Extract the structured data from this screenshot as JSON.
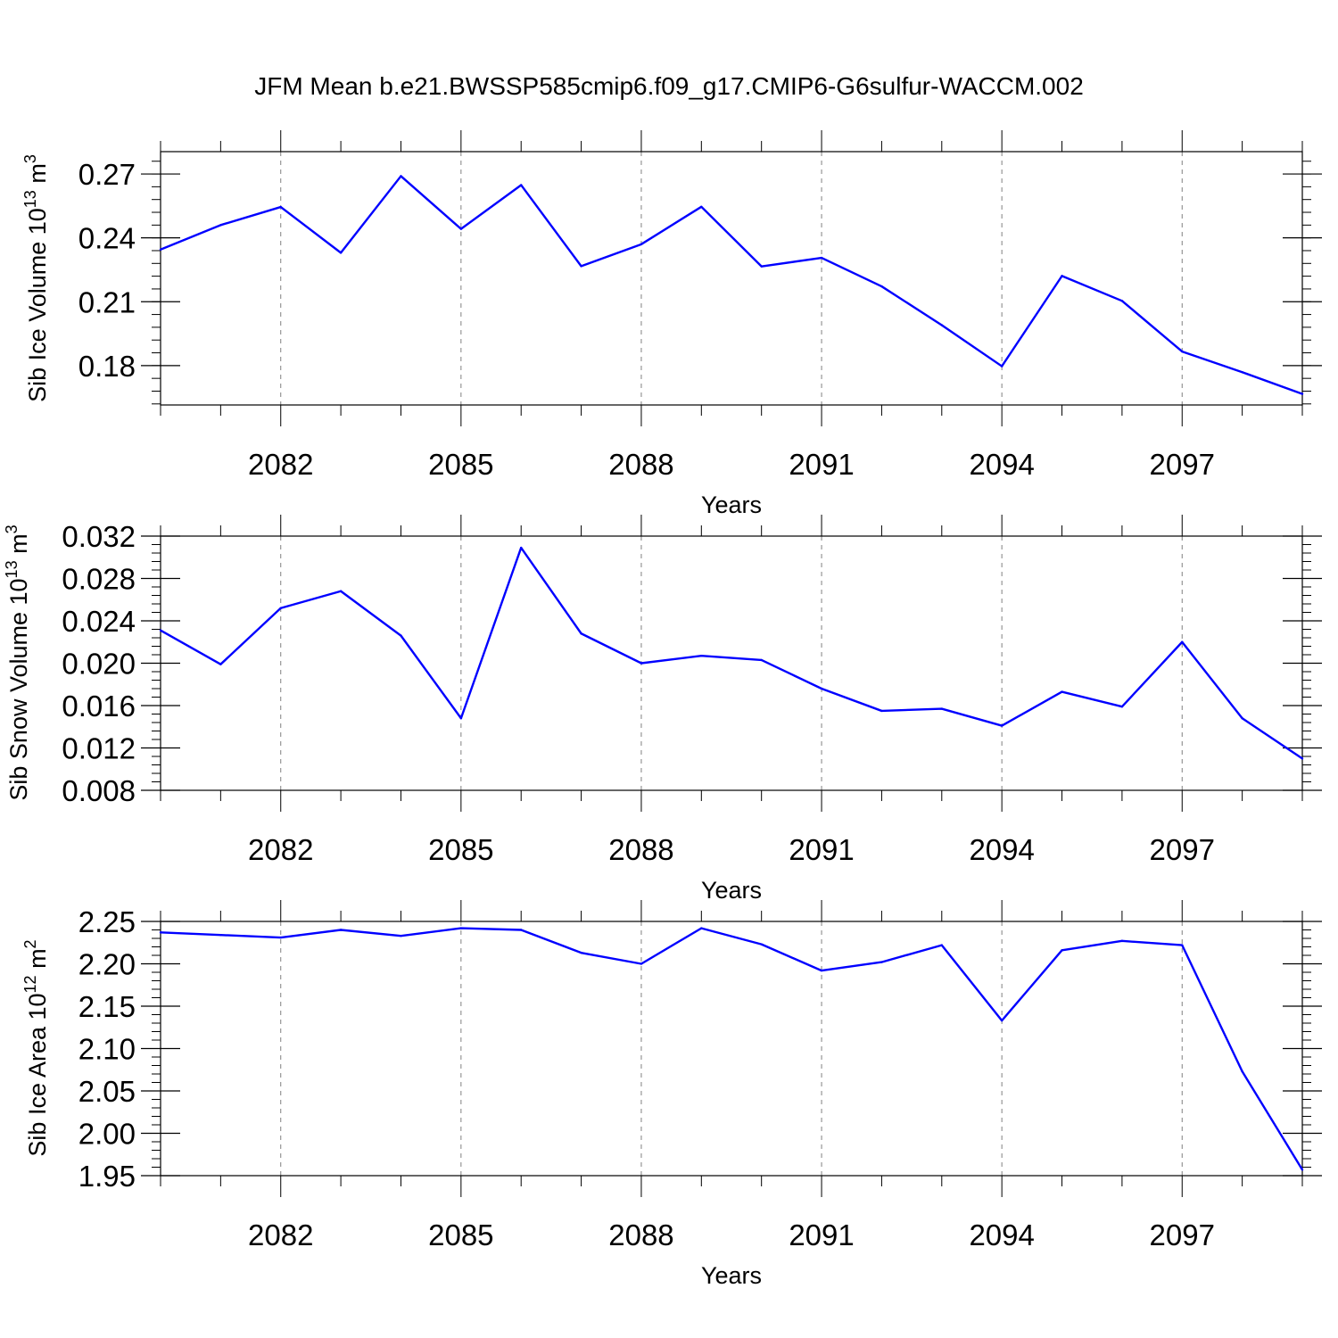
{
  "title": "JFM Mean b.e21.BWSSP585cmip6.f09_g17.CMIP6-G6sulfur-WACCM.002",
  "colors": {
    "line": "#0000ff",
    "axis": "#000000",
    "grid": "#808080"
  },
  "chart_data": [
    {
      "type": "line",
      "ylabel_main": "Sib Ice Volume 10",
      "ylabel_exp": "13",
      "ylabel_unit": "m",
      "ylabel_unit_exp": "3",
      "xlabel": "Years",
      "xlim": [
        2080,
        2099
      ],
      "ylim": [
        0.1615,
        0.2805
      ],
      "xticks": [
        "2082",
        "2085",
        "2088",
        "2091",
        "2094",
        "2097"
      ],
      "yticks": [
        "0.18",
        "0.21",
        "0.24",
        "0.27"
      ],
      "x": [
        2080,
        2081,
        2082,
        2083,
        2084,
        2085,
        2086,
        2087,
        2088,
        2089,
        2090,
        2091,
        2092,
        2093,
        2094,
        2095,
        2096,
        2097,
        2098,
        2099
      ],
      "values": [
        0.2345,
        0.246,
        0.2545,
        0.233,
        0.269,
        0.2442,
        0.2648,
        0.2267,
        0.237,
        0.2546,
        0.2266,
        0.2306,
        0.2172,
        0.199,
        0.1797,
        0.2221,
        0.2104,
        0.1866,
        0.1769,
        0.1667
      ]
    },
    {
      "type": "line",
      "ylabel_main": "Sib Snow Volume 10",
      "ylabel_exp": "13",
      "ylabel_unit": "m",
      "ylabel_unit_exp": "3",
      "xlabel": "Years",
      "xlim": [
        2080,
        2099
      ],
      "ylim": [
        0.008,
        0.032
      ],
      "xticks": [
        "2082",
        "2085",
        "2088",
        "2091",
        "2094",
        "2097"
      ],
      "yticks": [
        "0.008",
        "0.012",
        "0.016",
        "0.020",
        "0.024",
        "0.028",
        "0.032"
      ],
      "x": [
        2080,
        2081,
        2082,
        2083,
        2084,
        2085,
        2086,
        2087,
        2088,
        2089,
        2090,
        2091,
        2092,
        2093,
        2094,
        2095,
        2096,
        2097,
        2098,
        2099
      ],
      "values": [
        0.0231,
        0.0199,
        0.0252,
        0.0268,
        0.0226,
        0.0148,
        0.0309,
        0.0228,
        0.02,
        0.0207,
        0.0203,
        0.0176,
        0.0155,
        0.0157,
        0.0141,
        0.0173,
        0.0159,
        0.022,
        0.0148,
        0.011
      ]
    },
    {
      "type": "line",
      "ylabel_main": "Sib Ice Area 10",
      "ylabel_exp": "12",
      "ylabel_unit": "m",
      "ylabel_unit_exp": "2",
      "xlabel": "Years",
      "xlim": [
        2080,
        2099
      ],
      "ylim": [
        1.95,
        2.25
      ],
      "xticks": [
        "2082",
        "2085",
        "2088",
        "2091",
        "2094",
        "2097"
      ],
      "yticks": [
        "1.95",
        "2.00",
        "2.05",
        "2.10",
        "2.15",
        "2.20",
        "2.25"
      ],
      "x": [
        2080,
        2081,
        2082,
        2083,
        2084,
        2085,
        2086,
        2087,
        2088,
        2089,
        2090,
        2091,
        2092,
        2093,
        2094,
        2095,
        2096,
        2097,
        2098,
        2099
      ],
      "values": [
        2.237,
        2.234,
        2.231,
        2.24,
        2.233,
        2.242,
        2.24,
        2.213,
        2.2,
        2.242,
        2.223,
        2.192,
        2.202,
        2.222,
        2.133,
        2.216,
        2.227,
        2.222,
        2.073,
        1.957
      ]
    }
  ]
}
